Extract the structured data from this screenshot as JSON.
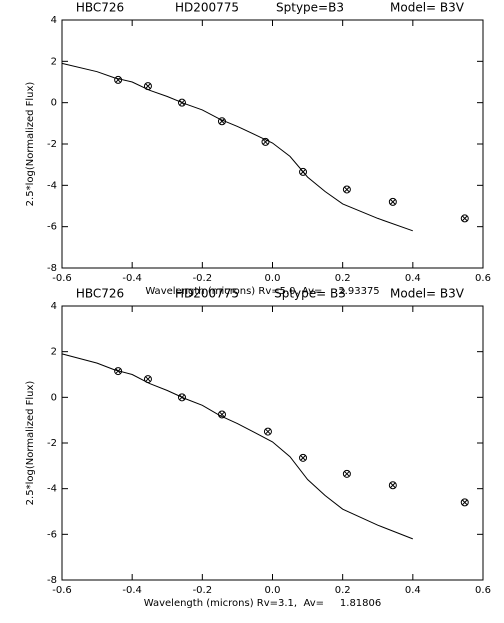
{
  "chart_data": [
    {
      "type": "scatter",
      "annotations": [
        "HBC726",
        "HD200775",
        "Sptype=B3",
        "Model= B3V"
      ],
      "xlabel": "Wavelength (microns) Rv=5.0, Av=     2.93375",
      "ylabel": "2.5*log(Normalized Flux)",
      "xlim": [
        -0.6,
        0.6
      ],
      "ylim": [
        -8,
        4
      ],
      "xticks": [
        -0.6,
        -0.4,
        -0.2,
        {
          "value": 0,
          "label": "0.0"
        },
        0.2,
        0.4,
        0.6
      ],
      "yticks": [
        -8,
        -6,
        -4,
        -2,
        0,
        2,
        4
      ],
      "color": "#000000",
      "model": {
        "x": [
          -0.6,
          -0.5,
          -0.45,
          -0.4,
          -0.35,
          -0.3,
          -0.25,
          -0.2,
          -0.15,
          -0.1,
          -0.05,
          0,
          0.05,
          0.1,
          0.15,
          0.2,
          0.3,
          0.4
        ],
        "values": [
          1.9,
          1.5,
          1.2,
          1.0,
          0.6,
          0.3,
          -0.05,
          -0.35,
          -0.8,
          -1.15,
          -1.55,
          -1.95,
          -2.6,
          -3.6,
          -4.3,
          -4.9,
          -5.6,
          -6.2
        ]
      },
      "points": {
        "x": [
          -0.44,
          -0.355,
          -0.258,
          -0.144,
          -0.02,
          0.087,
          0.212,
          0.343,
          0.548
        ],
        "values": [
          1.1,
          0.8,
          0.0,
          -0.9,
          -1.9,
          -3.35,
          -4.2,
          -4.8,
          -5.6
        ]
      }
    },
    {
      "type": "scatter",
      "annotations": [
        "HBC726",
        "HD200775",
        "Sptype= B3",
        "Model= B3V"
      ],
      "xlabel": "Wavelength (microns) Rv=3.1,  Av=     1.81806",
      "ylabel": "2.5*log(Normalized Flux)",
      "xlim": [
        -0.6,
        0.6
      ],
      "ylim": [
        -8,
        4
      ],
      "xticks": [
        -0.6,
        -0.4,
        -0.2,
        {
          "value": 0,
          "label": "0.0"
        },
        0.2,
        0.4,
        0.6
      ],
      "yticks": [
        -8,
        -6,
        -4,
        -2,
        0,
        2,
        4
      ],
      "color": "#000000",
      "model": {
        "x": [
          -0.6,
          -0.5,
          -0.45,
          -0.4,
          -0.35,
          -0.3,
          -0.25,
          -0.2,
          -0.15,
          -0.1,
          -0.05,
          0,
          0.05,
          0.1,
          0.15,
          0.2,
          0.3,
          0.4
        ],
        "values": [
          1.9,
          1.5,
          1.2,
          1.0,
          0.6,
          0.3,
          -0.05,
          -0.35,
          -0.8,
          -1.15,
          -1.55,
          -1.95,
          -2.6,
          -3.6,
          -4.3,
          -4.9,
          -5.6,
          -6.2
        ]
      },
      "points": {
        "x": [
          -0.44,
          -0.355,
          -0.258,
          -0.144,
          -0.013,
          0.087,
          0.212,
          0.343,
          0.548
        ],
        "values": [
          1.15,
          0.8,
          0.0,
          -0.75,
          -1.5,
          -2.65,
          -3.35,
          -3.85,
          -4.6
        ]
      }
    }
  ]
}
